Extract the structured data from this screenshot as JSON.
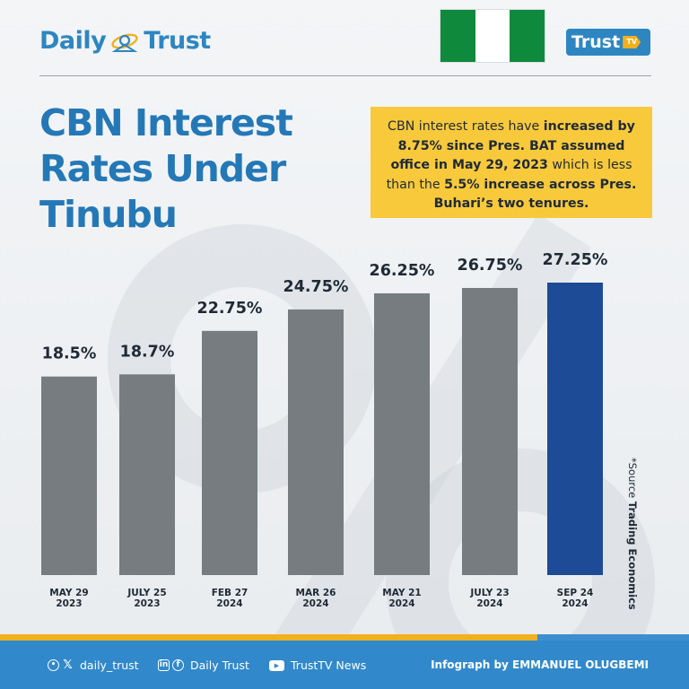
{
  "brand": {
    "name_left": "Daily",
    "name_right": "Trust",
    "tv_logo": "Trust",
    "tv_badge": "TV",
    "brand_color": "#2e86c1"
  },
  "flag_colors": [
    "#0f8a3c",
    "#ffffff",
    "#0f8a3c"
  ],
  "title": "CBN Interest Rates Under Tinubu",
  "callout": {
    "t1": "CBN interest rates have ",
    "b1": "increased by 8.75% since Pres. BAT assumed office in May 29, 2023",
    "t2": " which is less than the ",
    "b2": "5.5% increase across Pres. Buhari’s two tenures.",
    "bg_color": "#f8c93b"
  },
  "source": {
    "prefix": "*Source ",
    "name": "Trading Economics"
  },
  "chart_data": {
    "type": "bar",
    "categories": [
      [
        "MAY 29",
        "2023"
      ],
      [
        "JULY 25",
        "2023"
      ],
      [
        "FEB 27",
        "2024"
      ],
      [
        "MAR 26",
        "2024"
      ],
      [
        "MAY 21",
        "2024"
      ],
      [
        "JULY 23",
        "2024"
      ],
      [
        "SEP 24",
        "2024"
      ]
    ],
    "values": [
      18.5,
      18.7,
      22.75,
      24.75,
      26.25,
      26.75,
      27.25
    ],
    "value_labels": [
      "18.5%",
      "18.7%",
      "22.75%",
      "24.75%",
      "26.25%",
      "26.75%",
      "27.25%"
    ],
    "bar_color": "#767c80",
    "highlight_index": 6,
    "highlight_color": "#1d4b96",
    "ylim": [
      0,
      27.25
    ],
    "grid": false,
    "title": "",
    "xlabel": "",
    "ylabel": ""
  },
  "footer": {
    "social_handle": "daily_trust",
    "facebook": "Daily Trust",
    "youtube": "TrustTV News",
    "credit_prefix": "Infograph by ",
    "credit_name": "EMMANUEL OLUGBEMI",
    "footer_color": "#3189cb",
    "stripe_color": "#f2b01e"
  }
}
